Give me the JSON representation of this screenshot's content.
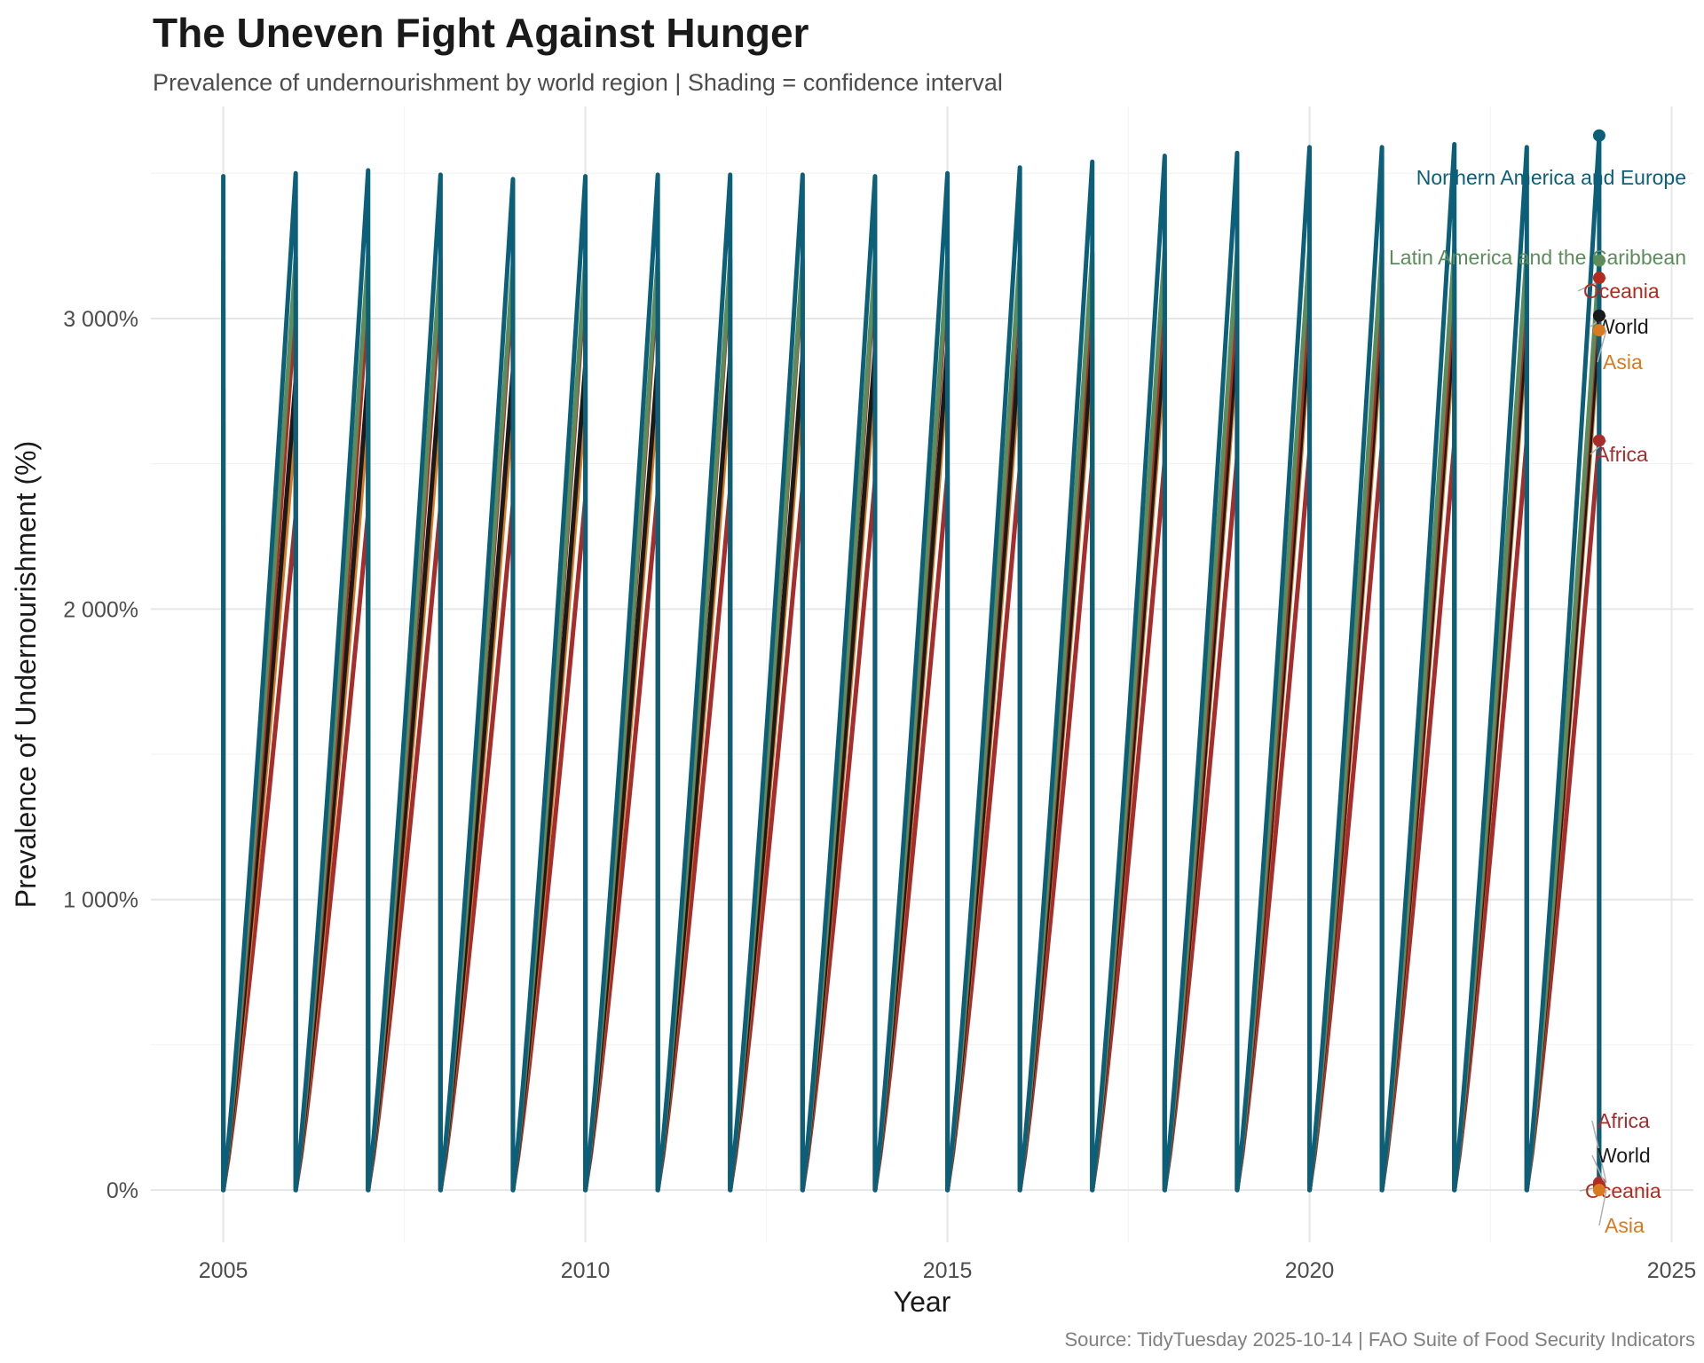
{
  "chart_data": {
    "type": "line",
    "title": "The Uneven Fight Against Hunger",
    "subtitle": "Prevalence of undernourishment by world region | Shading = confidence interval",
    "caption": "Source: TidyTuesday 2025-10-14 | FAO Suite of Food Security Indicators",
    "xlabel": "Year",
    "ylabel": "Prevalence of Undernourishment (%)",
    "xlim": [
      2004.0,
      2025.3
    ],
    "ylim": [
      -180,
      3730
    ],
    "x_ticks": [
      2005,
      2010,
      2015,
      2020,
      2025
    ],
    "x_tick_labels": [
      "2005",
      "2010",
      "2015",
      "2020",
      "2025"
    ],
    "y_ticks": [
      0,
      1000,
      2000,
      3000
    ],
    "y_tick_labels": [
      "0%",
      "1 000%",
      "2 000%",
      "3 000%"
    ],
    "grid": true,
    "x": [
      2005,
      2006,
      2007,
      2008,
      2009,
      2010,
      2011,
      2012,
      2013,
      2014,
      2015,
      2016,
      2017,
      2018,
      2019,
      2020,
      2021,
      2022,
      2023,
      2024
    ],
    "series": [
      {
        "name": "Northern America and Europe",
        "color": "#0b5f79",
        "peaks": [
          3490,
          3500,
          3510,
          3495,
          3480,
          3490,
          3495,
          3495,
          3495,
          3490,
          3500,
          3520,
          3540,
          3560,
          3570,
          3590,
          3590,
          3600,
          3590,
          3630
        ]
      },
      {
        "name": "Latin America and the Caribbean",
        "color": "#5b8c5a",
        "peaks": [
          3200,
          3210,
          3215,
          3205,
          3190,
          3200,
          3205,
          3205,
          3205,
          3200,
          3205,
          3215,
          3225,
          3235,
          3235,
          3245,
          3240,
          3240,
          3230,
          3200
        ]
      },
      {
        "name": "Oceania",
        "color": "#b22b1e",
        "peaks": [
          3030,
          3060,
          3080,
          3110,
          3130,
          3150,
          3160,
          3170,
          3170,
          3160,
          3150,
          3140,
          3130,
          3120,
          3110,
          3110,
          3120,
          3130,
          3140,
          3140
        ]
      },
      {
        "name": "World",
        "color": "#1a1a1a",
        "peaks": [
          2760,
          2790,
          2800,
          2810,
          2820,
          2840,
          2850,
          2860,
          2870,
          2890,
          2900,
          2920,
          2930,
          2950,
          2960,
          2980,
          3000,
          3010,
          3010,
          3010
        ]
      },
      {
        "name": "Asia",
        "color": "#d97a1e",
        "peaks": [
          2640,
          2660,
          2680,
          2700,
          2710,
          2730,
          2750,
          2760,
          2780,
          2800,
          2820,
          2840,
          2860,
          2880,
          2900,
          2920,
          2940,
          2950,
          2960,
          2960
        ]
      },
      {
        "name": "Africa",
        "color": "#a72c2c",
        "peaks": [
          2300,
          2320,
          2330,
          2350,
          2360,
          2380,
          2400,
          2410,
          2420,
          2440,
          2460,
          2480,
          2500,
          2510,
          2520,
          2540,
          2560,
          2570,
          2580,
          2580
        ]
      }
    ],
    "end_labels_top": [
      {
        "name": "Northern America and Europe",
        "value": 3630,
        "color": "#0b5f79"
      },
      {
        "name": "Latin America and the Caribbean",
        "value": 3200,
        "color": "#5b8c5a"
      },
      {
        "name": "Oceania",
        "value": 3140,
        "color": "#b22b1e"
      },
      {
        "name": "World",
        "value": 3010,
        "color": "#1a1a1a"
      },
      {
        "name": "Asia",
        "value": 2960,
        "color": "#d97a1e"
      },
      {
        "name": "Africa",
        "value": 2580,
        "color": "#a72c2c"
      }
    ],
    "end_labels_bottom": [
      {
        "name": "Africa",
        "value": 25,
        "color": "#a72c2c"
      },
      {
        "name": "World",
        "value": 10,
        "color": "#1a1a1a"
      },
      {
        "name": "Oceania",
        "value": 15,
        "color": "#b22b1e"
      },
      {
        "name": "Asia",
        "value": 0,
        "color": "#d97a1e"
      }
    ]
  }
}
